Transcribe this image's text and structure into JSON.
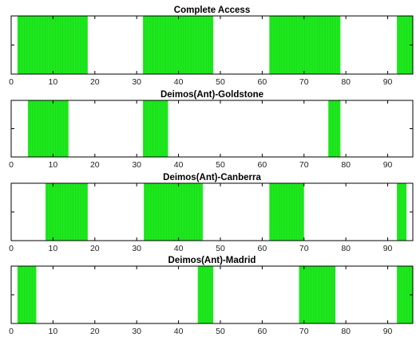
{
  "chart_data": [
    {
      "type": "bar",
      "title": "Complete Access",
      "xlim": [
        0,
        96
      ],
      "xticks": [
        "0",
        "10",
        "20",
        "30",
        "40",
        "50",
        "60",
        "70",
        "80",
        "90"
      ],
      "color": "#1ee81e",
      "intervals": [
        [
          1.5,
          18.3
        ],
        [
          31.5,
          48.3
        ],
        [
          61.7,
          78.7
        ],
        [
          92.2,
          96
        ]
      ]
    },
    {
      "type": "bar",
      "title": "Deimos(Ant)-Goldstone",
      "xlim": [
        0,
        96
      ],
      "xticks": [
        "0",
        "10",
        "20",
        "30",
        "40",
        "50",
        "60",
        "70",
        "80",
        "90"
      ],
      "color": "#1ee81e",
      "intervals": [
        [
          4.0,
          13.7
        ],
        [
          31.5,
          37.5
        ],
        [
          75.8,
          78.7
        ]
      ]
    },
    {
      "type": "bar",
      "title": "Deimos(Ant)-Canberra",
      "xlim": [
        0,
        96
      ],
      "xticks": [
        "0",
        "10",
        "20",
        "30",
        "40",
        "50",
        "60",
        "70",
        "80",
        "90"
      ],
      "color": "#1ee81e",
      "intervals": [
        [
          8.2,
          18.3
        ],
        [
          31.7,
          45.8
        ],
        [
          61.7,
          70.0
        ],
        [
          92.2,
          94.5
        ]
      ]
    },
    {
      "type": "bar",
      "title": "Deimos(Ant)-Madrid",
      "xlim": [
        0,
        96
      ],
      "xticks": [
        "0",
        "10",
        "20",
        "30",
        "40",
        "50",
        "60",
        "70",
        "80",
        "90"
      ],
      "color": "#1ee81e",
      "intervals": [
        [
          1.5,
          6.0
        ],
        [
          44.6,
          48.3
        ],
        [
          68.8,
          77.5
        ],
        [
          92.2,
          96
        ]
      ]
    }
  ]
}
